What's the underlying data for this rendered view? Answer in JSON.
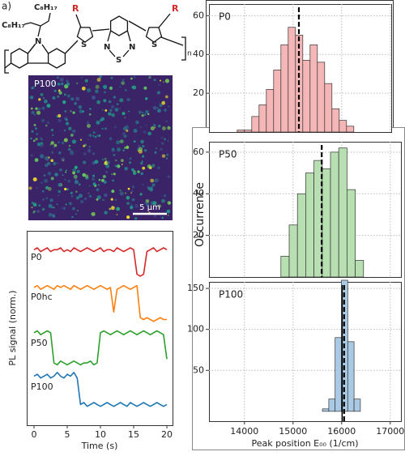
{
  "structure": {
    "label": "a)",
    "substituents": [
      "C₈H₁₇",
      "C₈H₁₇",
      "R",
      "R"
    ],
    "atoms": [
      "N",
      "S",
      "N",
      "N",
      "S",
      "S"
    ],
    "repeat": "n"
  },
  "image": {
    "label": "P100",
    "scale_bar": "5 µm"
  },
  "chart_data": [
    {
      "type": "line",
      "xlabel": "Time (s)",
      "ylabel": "PL signal (norm.)",
      "x": [
        0,
        0.5,
        1,
        1.5,
        2,
        2.5,
        3,
        3.5,
        4,
        4.5,
        5,
        5.5,
        6,
        6.5,
        7,
        7.5,
        8,
        8.5,
        9,
        9.5,
        10,
        10.5,
        11,
        11.5,
        12,
        12.5,
        13,
        13.5,
        14,
        14.5,
        15,
        15.5,
        16,
        16.5,
        17,
        17.5,
        18,
        18.5,
        19,
        19.5,
        20
      ],
      "xlim": [
        -1.1,
        20.85
      ],
      "xticks": [
        0,
        5,
        10,
        15,
        20
      ],
      "ylim": [
        -0.2,
        10.1
      ],
      "series": [
        {
          "name": "P0",
          "color": "#d62728",
          "values": [
            9.1,
            9.2,
            9.0,
            9.1,
            9.2,
            9.0,
            9.1,
            9.1,
            9.2,
            9.0,
            9.1,
            9.0,
            9.2,
            9.1,
            9.0,
            9.1,
            9.2,
            9.1,
            9.0,
            9.1,
            9.2,
            9.0,
            9.1,
            9.1,
            9.0,
            9.2,
            9.1,
            9.0,
            9.1,
            9.2,
            9.1,
            7.8,
            7.7,
            7.8,
            9.0,
            9.1,
            9.2,
            9.0,
            9.1,
            9.2,
            9.1
          ]
        },
        {
          "name": "P0hc",
          "color": "#ff7f0e",
          "values": [
            7.1,
            7.2,
            7.0,
            7.1,
            7.2,
            7.1,
            7.0,
            7.2,
            7.1,
            7.2,
            7.1,
            7.0,
            7.2,
            7.1,
            7.0,
            7.1,
            7.2,
            7.1,
            7.0,
            7.1,
            7.2,
            7.1,
            7.0,
            7.1,
            5.8,
            7.0,
            7.1,
            7.2,
            7.1,
            7.0,
            7.1,
            7.2,
            5.5,
            5.4,
            5.5,
            5.4,
            5.3,
            5.4,
            5.5,
            5.4,
            5.4
          ]
        },
        {
          "name": "P50",
          "color": "#2ca02c",
          "values": [
            4.7,
            4.8,
            4.6,
            4.7,
            4.8,
            4.7,
            3.1,
            3.0,
            3.2,
            3.1,
            3.0,
            3.1,
            3.2,
            3.1,
            3.0,
            3.1,
            3.1,
            3.2,
            3.0,
            3.1,
            4.7,
            4.8,
            4.7,
            4.6,
            4.7,
            4.8,
            4.7,
            4.6,
            4.7,
            4.8,
            4.7,
            4.6,
            4.7,
            4.8,
            4.7,
            4.6,
            4.7,
            4.8,
            4.7,
            4.6,
            3.3
          ]
        },
        {
          "name": "P100",
          "color": "#1f77b4",
          "values": [
            2.4,
            2.5,
            2.3,
            2.4,
            2.5,
            2.3,
            2.4,
            2.6,
            2.4,
            2.3,
            2.5,
            2.4,
            2.6,
            2.3,
            0.9,
            1.0,
            0.8,
            0.9,
            1.0,
            0.9,
            0.8,
            0.9,
            1.0,
            0.9,
            0.8,
            0.9,
            1.0,
            0.9,
            0.8,
            1.0,
            0.9,
            0.8,
            0.9,
            1.0,
            0.9,
            0.8,
            0.9,
            1.0,
            0.9,
            0.8,
            0.9
          ]
        }
      ]
    },
    {
      "type": "histogram",
      "title": "P0",
      "color": "#f4b6b6",
      "bins": [
        13850,
        14000,
        14150,
        14300,
        14450,
        14600,
        14750,
        14900,
        15050,
        15200,
        15350,
        15500,
        15650,
        15800,
        15950,
        16100,
        16250
      ],
      "counts": [
        1,
        1,
        8,
        14,
        22,
        32,
        45,
        54,
        50,
        37,
        45,
        36,
        25,
        12,
        6,
        3
      ],
      "xlim": [
        13270,
        17020
      ],
      "xticks": [
        14000,
        15000,
        16000,
        17000
      ],
      "xtick_labels": false,
      "ylim": [
        0,
        66
      ],
      "yticks": [
        20,
        40,
        60
      ],
      "grid": true,
      "dashed_line": 15120
    },
    {
      "type": "histogram",
      "title": "P50",
      "color": "#b7dfb1",
      "ylabel": "Occurrence",
      "bins": [
        14750,
        14920,
        15090,
        15260,
        15430,
        15600,
        15770,
        15940,
        16110,
        16280,
        16450
      ],
      "counts": [
        10,
        25,
        40,
        50,
        56,
        52,
        60,
        62,
        42,
        8
      ],
      "xlim": [
        13270,
        17220
      ],
      "xticks": [
        14000,
        15000,
        16000,
        17000
      ],
      "xtick_labels": false,
      "ylim": [
        0,
        65
      ],
      "yticks": [
        20,
        40,
        60
      ],
      "grid": true,
      "dashed_line": 15590
    },
    {
      "type": "histogram",
      "title": "P100",
      "color": "#aac9e4",
      "xlabel": "Peak position E₀₀ (1/cm)",
      "bins": [
        15605,
        15735,
        15865,
        15995,
        16125,
        16255,
        16385
      ],
      "counts": [
        3,
        15,
        90,
        160,
        85,
        15
      ],
      "xlim": [
        13270,
        17220
      ],
      "xticks": [
        14000,
        15000,
        16000,
        17000
      ],
      "xtick_labels": true,
      "ylim": [
        -12,
        158
      ],
      "yticks": [
        50,
        100,
        150
      ],
      "grid": true,
      "dashed_line": 16050,
      "solid_line": 16010
    }
  ]
}
